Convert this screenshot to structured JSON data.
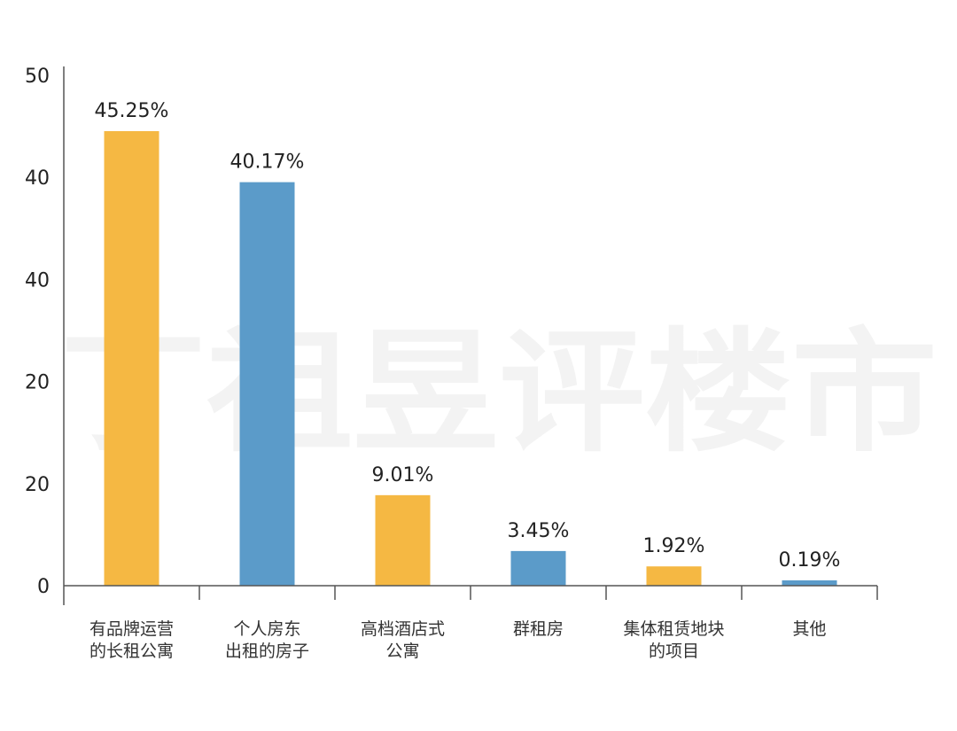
{
  "watermark": "丁祖昱评楼市",
  "chart_data": {
    "type": "bar",
    "title": "",
    "xlabel": "",
    "ylabel": "",
    "y_ticks": [
      "50",
      "40",
      "40",
      "20",
      "20",
      "0"
    ],
    "grid": false,
    "legend": "none",
    "categories": [
      [
        "有品牌运营",
        "的长租公寓"
      ],
      [
        "个人房东",
        "出租的房子"
      ],
      [
        "高档酒店式",
        "公寓"
      ],
      [
        "群租房"
      ],
      [
        "集体租赁地块",
        "的项目"
      ],
      [
        "其他"
      ]
    ],
    "values": [
      45.25,
      40.17,
      9.01,
      3.45,
      1.92,
      0.19
    ],
    "value_labels": [
      "45.25%",
      "40.17%",
      "9.01%",
      "3.45%",
      "1.92%",
      "0.19%"
    ],
    "colors": [
      "#F5B843",
      "#5B9BC9",
      "#F5B843",
      "#5B9BC9",
      "#F5B843",
      "#5B9BC9"
    ]
  }
}
